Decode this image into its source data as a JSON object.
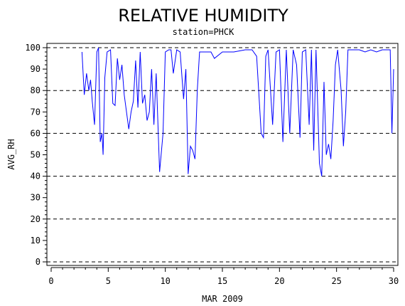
{
  "chart_data": {
    "type": "line",
    "title": "RELATIVE HUMIDITY",
    "subtitle": "station=PHCK",
    "xlabel": "MAR 2009",
    "ylabel": "AVG_RH",
    "xlim": [
      0,
      30
    ],
    "ylim": [
      0,
      100
    ],
    "x_ticks": [
      0,
      5,
      10,
      15,
      20,
      25,
      30
    ],
    "y_ticks": [
      0,
      10,
      20,
      30,
      40,
      50,
      60,
      70,
      80,
      90,
      100
    ],
    "dashed_gridlines_y": [
      0,
      20,
      40,
      60,
      80,
      100
    ],
    "grid": "horizontal dashed",
    "series": [
      {
        "color": "#0000ff",
        "points": [
          [
            2.7,
            98
          ],
          [
            2.9,
            78
          ],
          [
            3.1,
            88
          ],
          [
            3.3,
            80
          ],
          [
            3.45,
            85
          ],
          [
            3.6,
            75
          ],
          [
            3.8,
            64
          ],
          [
            4.0,
            98
          ],
          [
            4.15,
            100
          ],
          [
            4.3,
            56
          ],
          [
            4.45,
            60
          ],
          [
            4.55,
            50
          ],
          [
            4.7,
            86
          ],
          [
            4.9,
            98
          ],
          [
            5.2,
            99
          ],
          [
            5.4,
            74
          ],
          [
            5.6,
            73
          ],
          [
            5.8,
            95
          ],
          [
            6.0,
            85
          ],
          [
            6.2,
            92
          ],
          [
            6.4,
            78
          ],
          [
            6.6,
            70
          ],
          [
            6.8,
            62
          ],
          [
            7.0,
            70
          ],
          [
            7.2,
            75
          ],
          [
            7.4,
            94
          ],
          [
            7.6,
            72
          ],
          [
            7.8,
            98
          ],
          [
            8.0,
            74
          ],
          [
            8.2,
            78
          ],
          [
            8.4,
            66
          ],
          [
            8.6,
            70
          ],
          [
            8.8,
            90
          ],
          [
            9.0,
            64
          ],
          [
            9.2,
            88
          ],
          [
            9.5,
            42
          ],
          [
            9.8,
            60
          ],
          [
            10.0,
            98
          ],
          [
            10.3,
            99
          ],
          [
            10.5,
            99
          ],
          [
            10.7,
            88
          ],
          [
            11.0,
            99
          ],
          [
            11.3,
            98
          ],
          [
            11.6,
            76
          ],
          [
            11.8,
            90
          ],
          [
            12.0,
            41
          ],
          [
            12.2,
            54
          ],
          [
            12.4,
            52
          ],
          [
            12.6,
            48
          ],
          [
            12.8,
            80
          ],
          [
            13.0,
            98
          ],
          [
            13.5,
            98
          ],
          [
            14.0,
            98
          ],
          [
            14.3,
            95
          ],
          [
            15.0,
            98
          ],
          [
            16.0,
            98
          ],
          [
            17.0,
            99
          ],
          [
            17.6,
            99
          ],
          [
            18.0,
            96
          ],
          [
            18.4,
            60
          ],
          [
            18.6,
            58
          ],
          [
            18.8,
            96
          ],
          [
            19.0,
            99
          ],
          [
            19.4,
            64
          ],
          [
            19.7,
            98
          ],
          [
            20.0,
            99
          ],
          [
            20.3,
            56
          ],
          [
            20.6,
            99
          ],
          [
            20.9,
            60
          ],
          [
            21.2,
            99
          ],
          [
            21.5,
            92
          ],
          [
            21.8,
            58
          ],
          [
            22.0,
            98
          ],
          [
            22.3,
            99
          ],
          [
            22.6,
            64
          ],
          [
            22.8,
            99
          ],
          [
            23.0,
            52
          ],
          [
            23.2,
            99
          ],
          [
            23.5,
            46
          ],
          [
            23.7,
            40
          ],
          [
            23.9,
            84
          ],
          [
            24.1,
            50
          ],
          [
            24.3,
            55
          ],
          [
            24.5,
            48
          ],
          [
            24.7,
            66
          ],
          [
            24.9,
            92
          ],
          [
            25.1,
            99
          ],
          [
            25.4,
            80
          ],
          [
            25.6,
            54
          ],
          [
            25.8,
            70
          ],
          [
            26.0,
            99
          ],
          [
            26.5,
            99
          ],
          [
            27.0,
            99
          ],
          [
            27.5,
            98
          ],
          [
            28.0,
            99
          ],
          [
            28.5,
            98
          ],
          [
            29.0,
            99
          ],
          [
            29.4,
            99
          ],
          [
            29.7,
            99
          ],
          [
            29.85,
            60
          ],
          [
            30.0,
            90
          ]
        ]
      }
    ]
  },
  "colors": {
    "line": "#0000ff",
    "axis": "#000000",
    "background": "#ffffff"
  }
}
